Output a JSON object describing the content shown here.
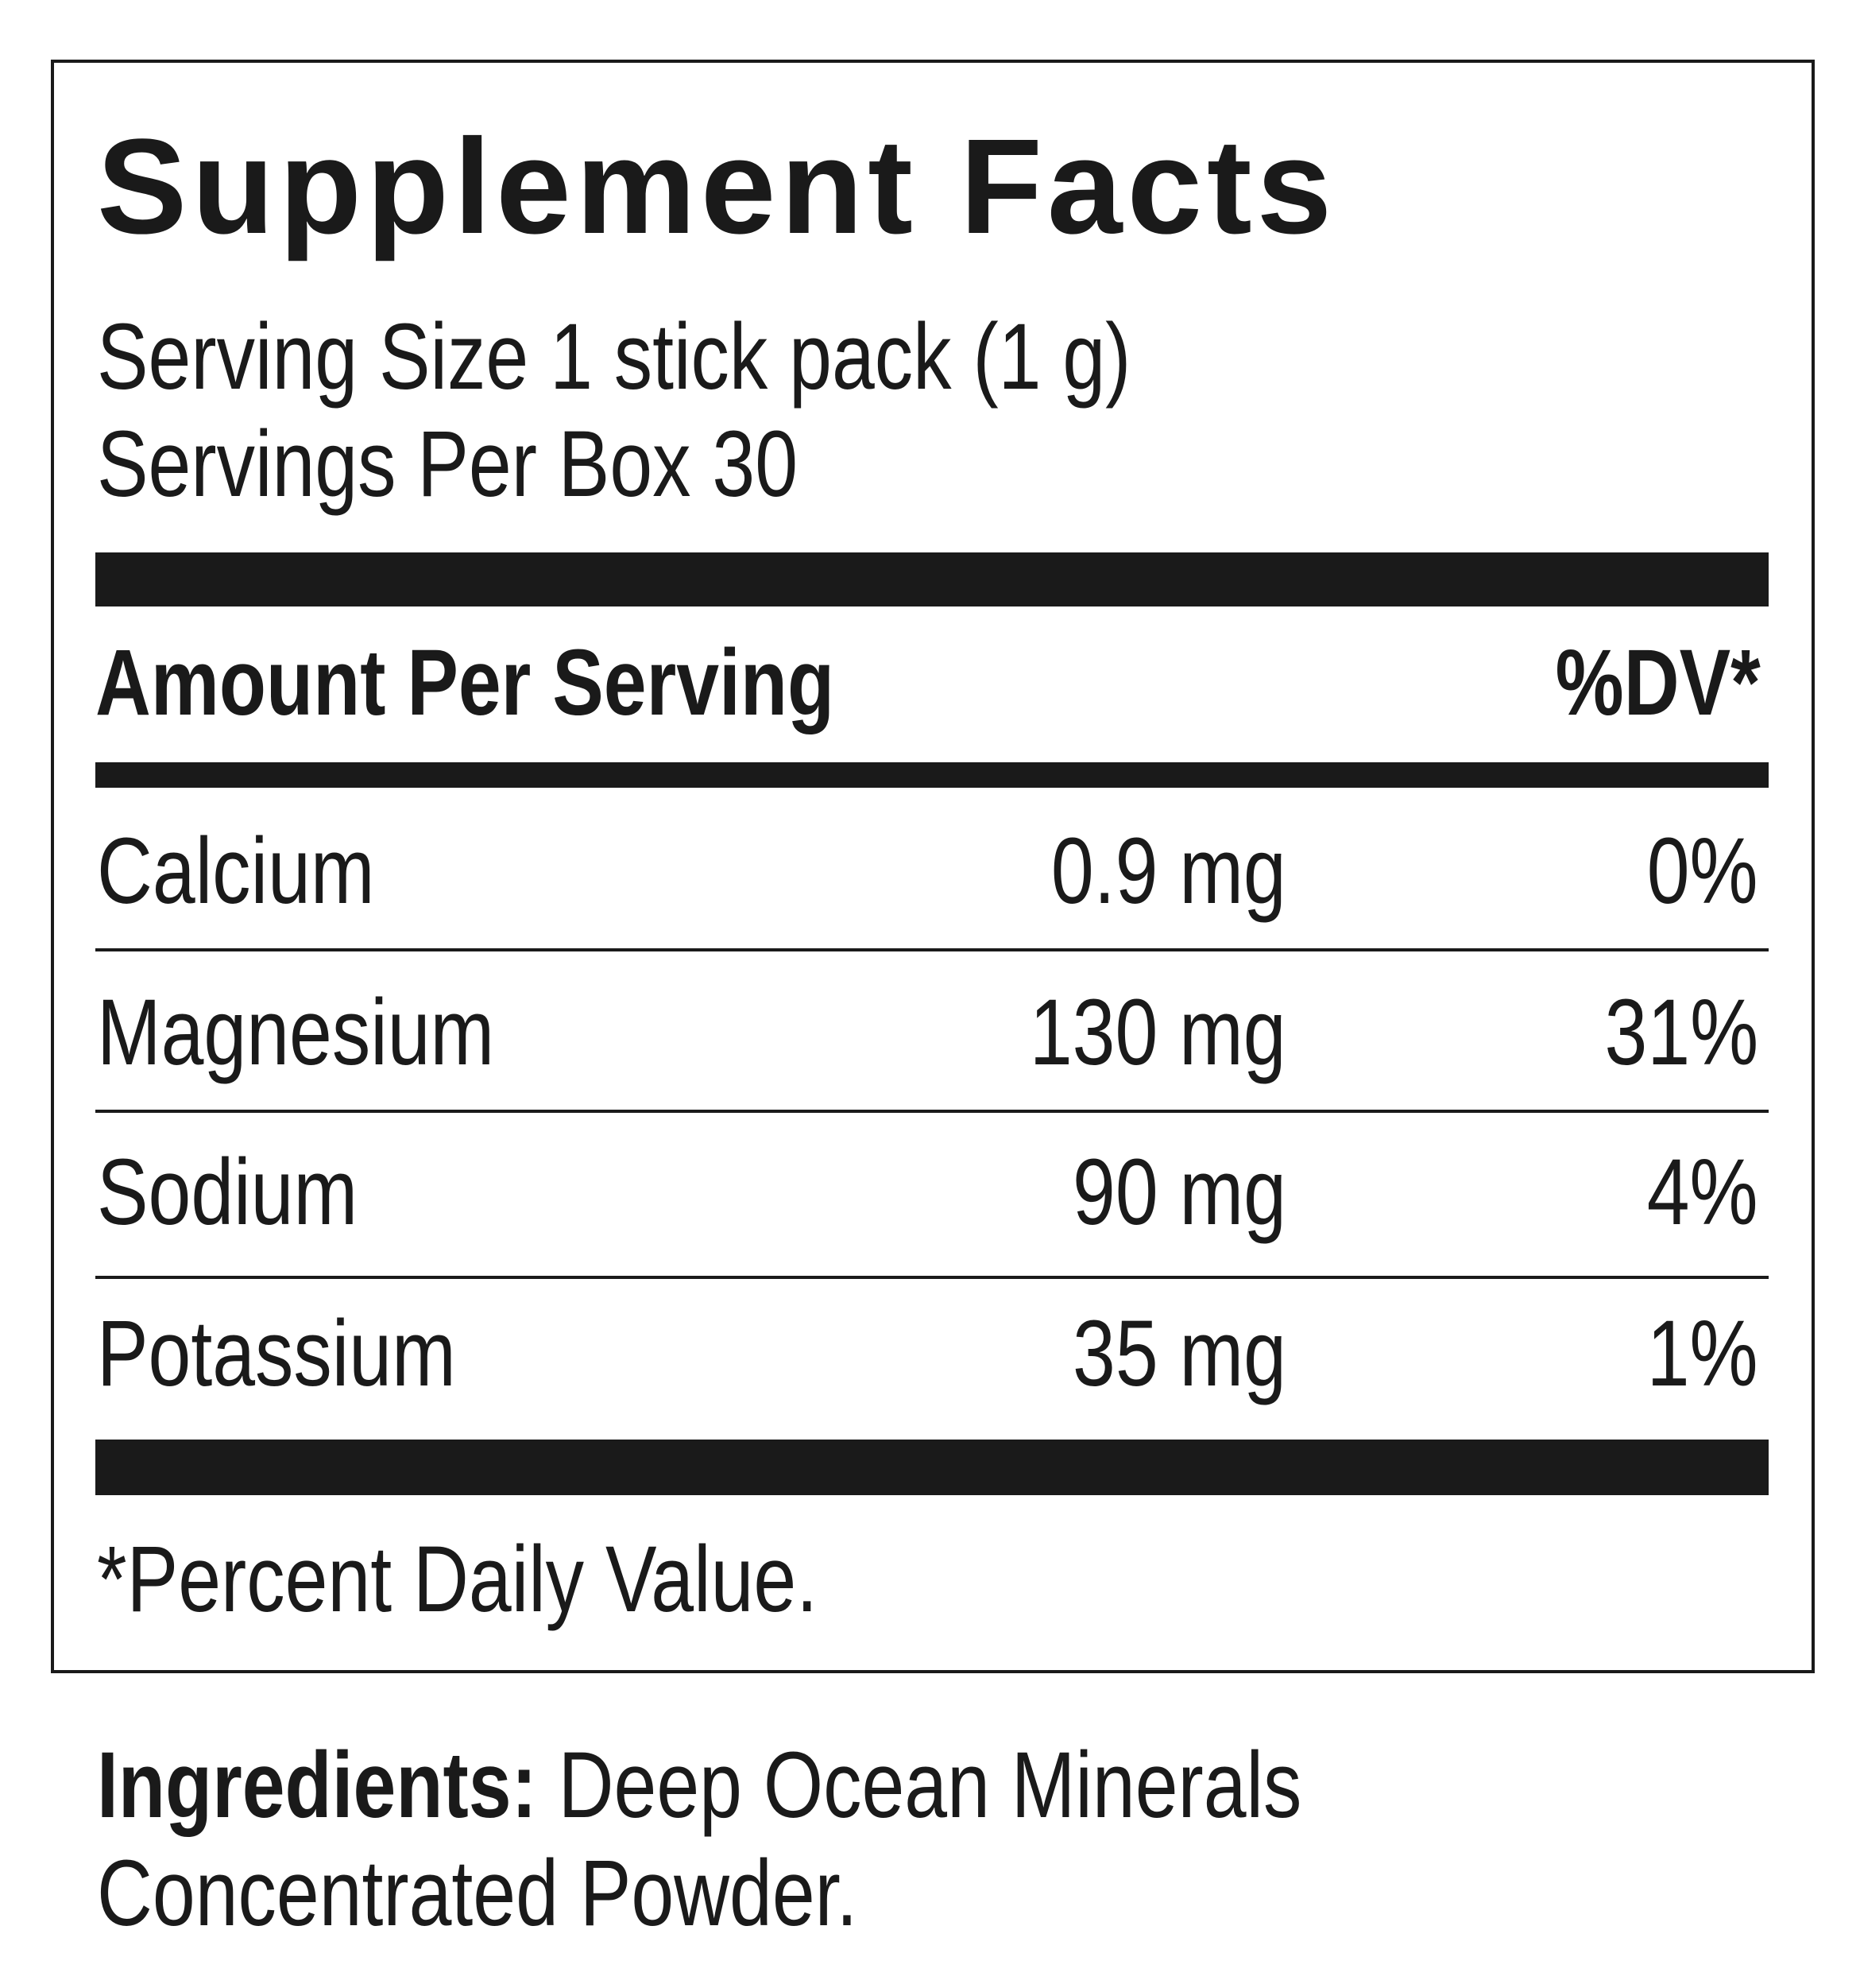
{
  "title": "Supplement Facts",
  "serving_size": "Serving Size 1 stick pack (1 g)",
  "servings_per_box": "Servings Per Box 30",
  "header": {
    "amount": "Amount Per Serving",
    "dv": "%DV*"
  },
  "rows": [
    {
      "name": "Calcium",
      "amount": "0.9 mg",
      "dv": "0%"
    },
    {
      "name": "Magnesium",
      "amount": "130 mg",
      "dv": "31%"
    },
    {
      "name": "Sodium",
      "amount": "90 mg",
      "dv": "4%"
    },
    {
      "name": "Potassium",
      "amount": "35 mg",
      "dv": "1%"
    }
  ],
  "footnote": "*Percent Daily Value.",
  "ingredients": {
    "label": "Ingredients:",
    "text_line1": "Deep Ocean Minerals",
    "text_line2": "Concentrated Powder."
  }
}
